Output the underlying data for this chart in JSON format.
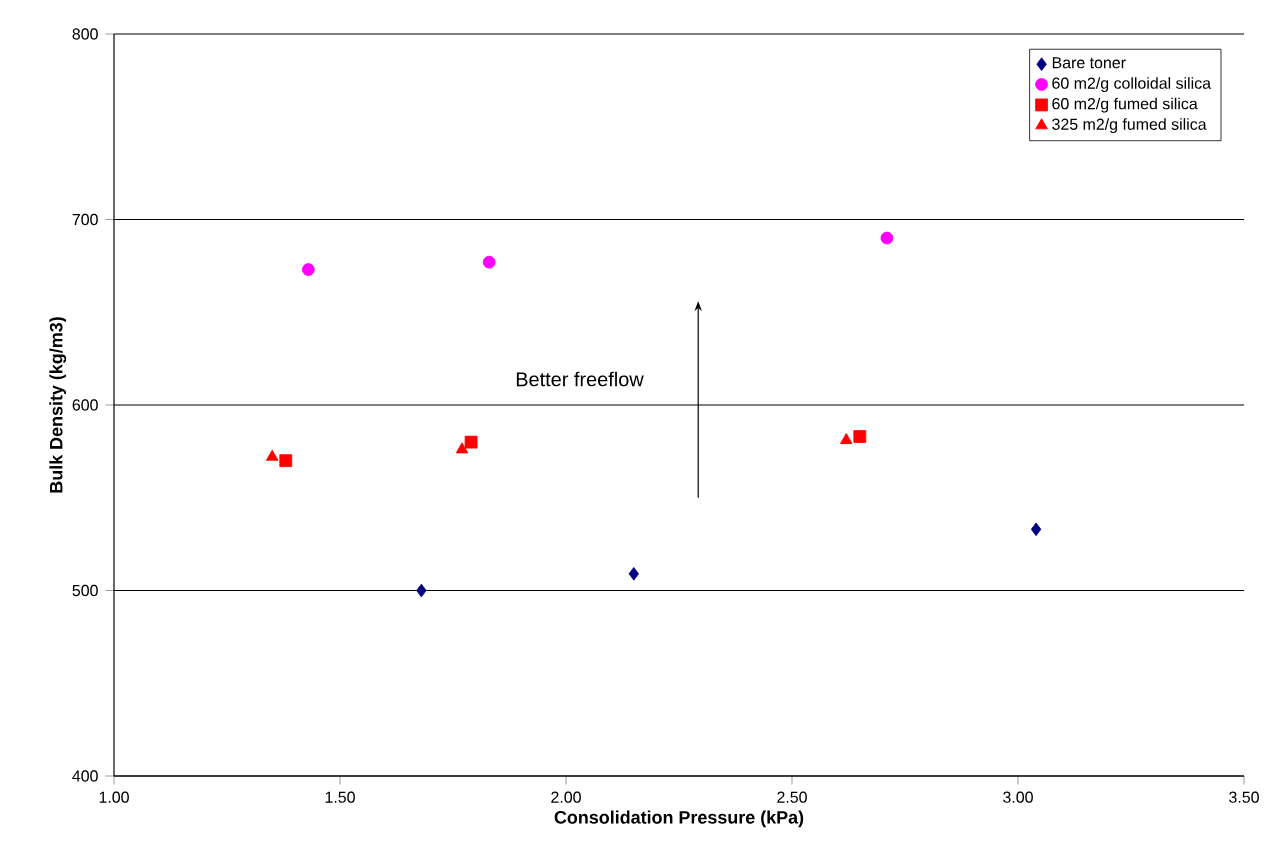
{
  "chart_data": {
    "type": "scatter",
    "xlabel": "Consolidation Pressure (kPa)",
    "ylabel": "Bulk Density (kg/m3)",
    "xlim": [
      1,
      3.5
    ],
    "xticks": [
      {
        "value": 1,
        "label": "1.00"
      },
      {
        "value": 1.5,
        "label": "1.50"
      },
      {
        "value": 2,
        "label": "2.00"
      },
      {
        "value": 2.5,
        "label": "2.50"
      },
      {
        "value": 3,
        "label": "3.00"
      },
      {
        "value": 3.5,
        "label": "3.50"
      }
    ],
    "ylim": [
      400,
      800
    ],
    "yticks": [
      400,
      500,
      600,
      700,
      800
    ],
    "grid": "y",
    "legend": "top right",
    "annotations": [
      "Better freeflow"
    ],
    "series": [
      {
        "name": "Bare toner",
        "color": "#000080",
        "marker": "diamond",
        "x": [
          1.68,
          2.15,
          3.04
        ],
        "values": [
          500,
          509,
          533
        ]
      },
      {
        "name": "60 m2/g colloidal silica",
        "color": "#ff00ff",
        "marker": "circle",
        "x": [
          1.43,
          1.83,
          2.71
        ],
        "values": [
          673,
          677,
          690
        ]
      },
      {
        "name": "60 m2/g fumed silica",
        "color": "#ff0000",
        "marker": "square",
        "x": [
          1.38,
          1.79,
          2.65
        ],
        "values": [
          570,
          580,
          583
        ]
      },
      {
        "name": "325 m2/g fumed silica",
        "color": "#ff0000",
        "marker": "triangle",
        "x": [
          1.35,
          1.77,
          2.62
        ],
        "values": [
          572,
          576,
          581
        ]
      }
    ]
  }
}
